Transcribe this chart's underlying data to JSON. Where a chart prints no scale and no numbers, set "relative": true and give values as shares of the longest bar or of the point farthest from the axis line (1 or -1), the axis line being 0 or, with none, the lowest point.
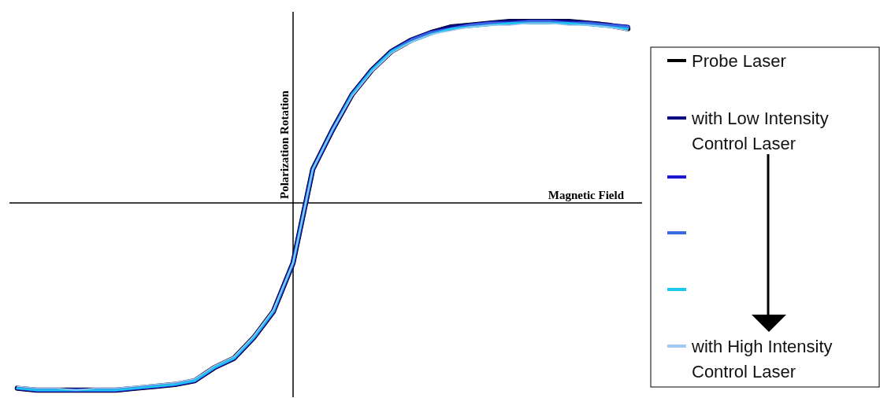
{
  "chart_data": {
    "type": "line",
    "relative": true,
    "xlabel": "Magnetic Field",
    "ylabel": "Polarization Rotation",
    "legend": "right",
    "categories": [
      null,
      null,
      null,
      null,
      null,
      null,
      null,
      null,
      null,
      null,
      null,
      null,
      null,
      null,
      null,
      null,
      null,
      null,
      null,
      null,
      null,
      null,
      null,
      null,
      null,
      null,
      null,
      null,
      null,
      null,
      null,
      null
    ],
    "series": [
      {
        "name": "Probe Laser",
        "color": "#000000",
        "values": [
          -0.99,
          -1.0,
          -1,
          -1,
          -1,
          -1.0,
          -0.99,
          -0.98,
          -0.97,
          -0.95,
          -0.88,
          -0.83,
          -0.72,
          -0.58,
          -0.32,
          0.18,
          0.39,
          0.58,
          0.71,
          0.81,
          0.87,
          0.91,
          0.94,
          0.95,
          0.96,
          0.97,
          0.97,
          0.97,
          0.97,
          0.96,
          0.95,
          0.93
        ]
      },
      {
        "name": "with Low Intensity Control Laser",
        "color": "#0a0a80",
        "values": [
          -0.99,
          -1.0,
          -1,
          -1,
          -1,
          -1.0,
          -0.99,
          -0.98,
          -0.97,
          -0.95,
          -0.88,
          -0.83,
          -0.72,
          -0.58,
          -0.32,
          0.18,
          0.39,
          0.58,
          0.71,
          0.81,
          0.87,
          0.91,
          0.94,
          0.95,
          0.96,
          0.97,
          0.97,
          0.97,
          0.97,
          0.96,
          0.95,
          0.94
        ]
      },
      {
        "color": "#1a1ad0",
        "values": [
          -0.99,
          -1.0,
          -1,
          -1,
          -1,
          -1.0,
          -0.99,
          -0.98,
          -0.97,
          -0.95,
          -0.88,
          -0.83,
          -0.72,
          -0.58,
          -0.32,
          0.18,
          0.39,
          0.58,
          0.71,
          0.81,
          0.87,
          0.91,
          0.93,
          0.95,
          0.96,
          0.96,
          0.97,
          0.97,
          0.96,
          0.96,
          0.95,
          0.94
        ]
      },
      {
        "color": "#3a6ae0",
        "values": [
          -0.99,
          -1.0,
          -1,
          -1,
          -1,
          -1.0,
          -0.99,
          -0.98,
          -0.97,
          -0.95,
          -0.88,
          -0.83,
          -0.72,
          -0.58,
          -0.32,
          0.18,
          0.39,
          0.58,
          0.71,
          0.81,
          0.87,
          0.91,
          0.93,
          0.95,
          0.96,
          0.96,
          0.97,
          0.97,
          0.96,
          0.96,
          0.95,
          0.94
        ]
      },
      {
        "color": "#1ac8f0",
        "values": [
          -0.99,
          -1.0,
          -1,
          -1,
          -1,
          -1.0,
          -0.99,
          -0.98,
          -0.97,
          -0.95,
          -0.88,
          -0.83,
          -0.72,
          -0.58,
          -0.32,
          0.18,
          0.39,
          0.58,
          0.71,
          0.81,
          0.86,
          0.9,
          0.93,
          0.94,
          0.95,
          0.96,
          0.96,
          0.96,
          0.96,
          0.95,
          0.94,
          0.93
        ]
      },
      {
        "name": "with High Intensity Control Laser",
        "color": "#a0c8f0",
        "values": [
          -0.98,
          -0.99,
          -0.99,
          -1,
          -0.99,
          -0.99,
          -0.98,
          -0.97,
          -0.96,
          -0.94,
          -0.87,
          -0.82,
          -0.71,
          -0.57,
          -0.32,
          0.18,
          0.39,
          0.57,
          0.7,
          0.8,
          0.86,
          0.9,
          0.92,
          0.94,
          0.95,
          0.95,
          0.96,
          0.96,
          0.95,
          0.95,
          0.94,
          0.92
        ]
      }
    ]
  }
}
